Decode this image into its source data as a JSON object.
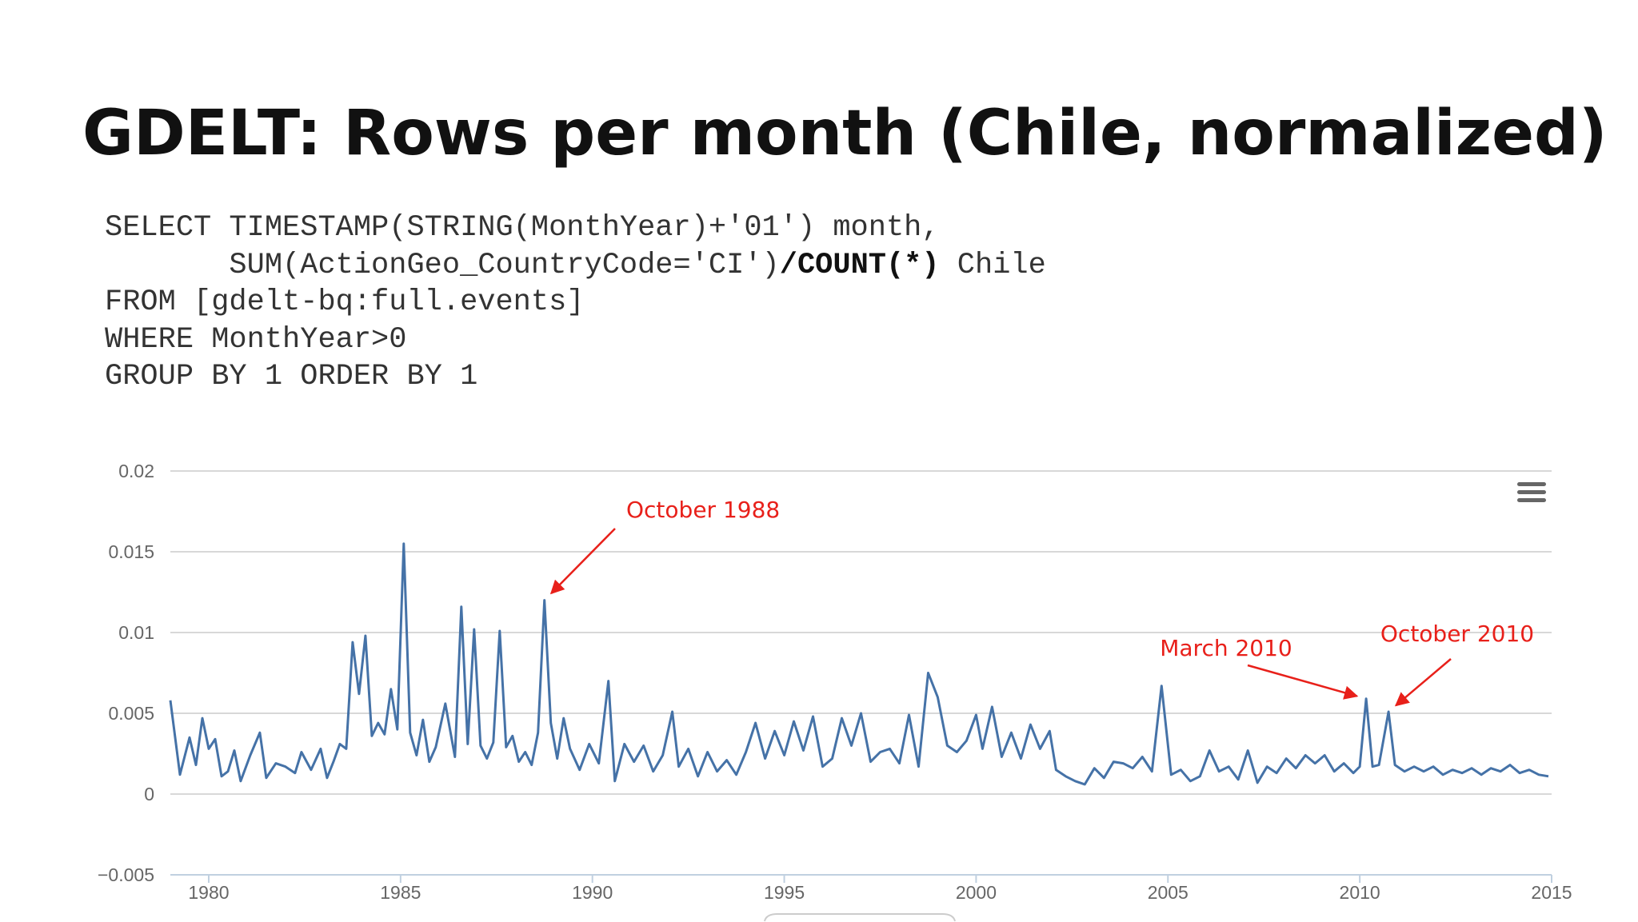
{
  "slide": {
    "title": "GDELT: Rows per month (Chile, normalized)",
    "code_lines": [
      [
        {
          "text": "SELECT TIMESTAMP(STRING(MonthYear)+'01') month,",
          "bold": false
        }
      ],
      [
        {
          "text": "       SUM(ActionGeo_CountryCode='CI')",
          "bold": false
        },
        {
          "text": "/COUNT(*)",
          "bold": true
        },
        {
          "text": " Chile",
          "bold": false
        }
      ],
      [
        {
          "text": "FROM [gdelt-bq:full.events]",
          "bold": false
        }
      ],
      [
        {
          "text": "WHERE MonthYear>0",
          "bold": false
        }
      ],
      [
        {
          "text": "GROUP BY 1 ORDER BY 1",
          "bold": false
        }
      ]
    ]
  },
  "chart_data": {
    "type": "line",
    "title": "",
    "xlabel": "",
    "ylabel": "",
    "xlim": [
      "1979-01",
      "2015-01"
    ],
    "ylim": [
      -0.005,
      0.02
    ],
    "yticks": [
      "0.02",
      "0.015",
      "0.01",
      "0.005",
      "0",
      "−0.005"
    ],
    "ytick_values": [
      0.02,
      0.015,
      0.01,
      0.005,
      0,
      -0.005
    ],
    "xticks": [
      "1980",
      "1985",
      "1990",
      "1995",
      "2000",
      "2005",
      "2010",
      "2015"
    ],
    "xtick_values": [
      "1980-01",
      "1985-01",
      "1990-01",
      "1995-01",
      "2000-01",
      "2005-01",
      "2010-01",
      "2015-01"
    ],
    "grid": true,
    "line_color": "#4572a7",
    "annotation_color": "#e8201a",
    "series": [
      {
        "values": [
          [
            "1979-01",
            0.0058
          ],
          [
            "1979-04",
            0.0012
          ],
          [
            "1979-07",
            0.0035
          ],
          [
            "1979-09",
            0.0018
          ],
          [
            "1979-11",
            0.0047
          ],
          [
            "1980-01",
            0.0028
          ],
          [
            "1980-03",
            0.0034
          ],
          [
            "1980-05",
            0.0011
          ],
          [
            "1980-07",
            0.0014
          ],
          [
            "1980-09",
            0.0027
          ],
          [
            "1980-11",
            0.0008
          ],
          [
            "1981-02",
            0.0024
          ],
          [
            "1981-05",
            0.0038
          ],
          [
            "1981-07",
            0.001
          ],
          [
            "1981-10",
            0.0019
          ],
          [
            "1982-01",
            0.0017
          ],
          [
            "1982-04",
            0.0013
          ],
          [
            "1982-06",
            0.0026
          ],
          [
            "1982-09",
            0.0015
          ],
          [
            "1982-12",
            0.0028
          ],
          [
            "1983-02",
            0.001
          ],
          [
            "1983-04",
            0.002
          ],
          [
            "1983-06",
            0.0031
          ],
          [
            "1983-08",
            0.0028
          ],
          [
            "1983-10",
            0.0094
          ],
          [
            "1983-12",
            0.0062
          ],
          [
            "1984-02",
            0.0098
          ],
          [
            "1984-04",
            0.0036
          ],
          [
            "1984-06",
            0.0044
          ],
          [
            "1984-08",
            0.0037
          ],
          [
            "1984-10",
            0.0065
          ],
          [
            "1984-12",
            0.004
          ],
          [
            "1985-02",
            0.0155
          ],
          [
            "1985-04",
            0.0038
          ],
          [
            "1985-06",
            0.0024
          ],
          [
            "1985-08",
            0.0046
          ],
          [
            "1985-10",
            0.002
          ],
          [
            "1985-12",
            0.0029
          ],
          [
            "1986-03",
            0.0056
          ],
          [
            "1986-06",
            0.0023
          ],
          [
            "1986-08",
            0.0116
          ],
          [
            "1986-10",
            0.0031
          ],
          [
            "1986-12",
            0.0102
          ],
          [
            "1987-02",
            0.003
          ],
          [
            "1987-04",
            0.0022
          ],
          [
            "1987-06",
            0.0032
          ],
          [
            "1987-08",
            0.0101
          ],
          [
            "1987-10",
            0.0029
          ],
          [
            "1987-12",
            0.0036
          ],
          [
            "1988-02",
            0.002
          ],
          [
            "1988-04",
            0.0026
          ],
          [
            "1988-06",
            0.0018
          ],
          [
            "1988-08",
            0.0038
          ],
          [
            "1988-10",
            0.012
          ],
          [
            "1988-12",
            0.0044
          ],
          [
            "1989-02",
            0.0022
          ],
          [
            "1989-04",
            0.0047
          ],
          [
            "1989-06",
            0.0028
          ],
          [
            "1989-09",
            0.0015
          ],
          [
            "1989-12",
            0.0031
          ],
          [
            "1990-03",
            0.0019
          ],
          [
            "1990-06",
            0.007
          ],
          [
            "1990-08",
            0.0008
          ],
          [
            "1990-11",
            0.0031
          ],
          [
            "1991-02",
            0.002
          ],
          [
            "1991-05",
            0.003
          ],
          [
            "1991-08",
            0.0014
          ],
          [
            "1991-11",
            0.0024
          ],
          [
            "1992-02",
            0.0051
          ],
          [
            "1992-04",
            0.0017
          ],
          [
            "1992-07",
            0.0028
          ],
          [
            "1992-10",
            0.0011
          ],
          [
            "1993-01",
            0.0026
          ],
          [
            "1993-04",
            0.0014
          ],
          [
            "1993-07",
            0.0021
          ],
          [
            "1993-10",
            0.0012
          ],
          [
            "1994-01",
            0.0026
          ],
          [
            "1994-04",
            0.0044
          ],
          [
            "1994-07",
            0.0022
          ],
          [
            "1994-10",
            0.0039
          ],
          [
            "1995-01",
            0.0024
          ],
          [
            "1995-04",
            0.0045
          ],
          [
            "1995-07",
            0.0027
          ],
          [
            "1995-10",
            0.0048
          ],
          [
            "1996-01",
            0.0017
          ],
          [
            "1996-04",
            0.0022
          ],
          [
            "1996-07",
            0.0047
          ],
          [
            "1996-10",
            0.003
          ],
          [
            "1997-01",
            0.005
          ],
          [
            "1997-04",
            0.002
          ],
          [
            "1997-07",
            0.0026
          ],
          [
            "1997-10",
            0.0028
          ],
          [
            "1998-01",
            0.0019
          ],
          [
            "1998-04",
            0.0049
          ],
          [
            "1998-07",
            0.0017
          ],
          [
            "1998-10",
            0.0075
          ],
          [
            "1999-01",
            0.006
          ],
          [
            "1999-04",
            0.003
          ],
          [
            "1999-07",
            0.0026
          ],
          [
            "1999-10",
            0.0033
          ],
          [
            "2000-01",
            0.0049
          ],
          [
            "2000-03",
            0.0028
          ],
          [
            "2000-06",
            0.0054
          ],
          [
            "2000-09",
            0.0023
          ],
          [
            "2000-12",
            0.0038
          ],
          [
            "2001-03",
            0.0022
          ],
          [
            "2001-06",
            0.0043
          ],
          [
            "2001-09",
            0.0028
          ],
          [
            "2001-12",
            0.0039
          ],
          [
            "2002-02",
            0.0015
          ],
          [
            "2002-05",
            0.0011
          ],
          [
            "2002-08",
            0.0008
          ],
          [
            "2002-11",
            0.0006
          ],
          [
            "2003-02",
            0.0016
          ],
          [
            "2003-05",
            0.001
          ],
          [
            "2003-08",
            0.002
          ],
          [
            "2003-11",
            0.0019
          ],
          [
            "2004-02",
            0.0016
          ],
          [
            "2004-05",
            0.0023
          ],
          [
            "2004-08",
            0.0014
          ],
          [
            "2004-11",
            0.0067
          ],
          [
            "2005-02",
            0.0012
          ],
          [
            "2005-05",
            0.0015
          ],
          [
            "2005-08",
            0.0008
          ],
          [
            "2005-11",
            0.0011
          ],
          [
            "2006-02",
            0.0027
          ],
          [
            "2006-05",
            0.0014
          ],
          [
            "2006-08",
            0.0017
          ],
          [
            "2006-11",
            0.0009
          ],
          [
            "2007-02",
            0.0027
          ],
          [
            "2007-05",
            0.0007
          ],
          [
            "2007-08",
            0.0017
          ],
          [
            "2007-11",
            0.0013
          ],
          [
            "2008-02",
            0.0022
          ],
          [
            "2008-05",
            0.0016
          ],
          [
            "2008-08",
            0.0024
          ],
          [
            "2008-11",
            0.0019
          ],
          [
            "2009-02",
            0.0024
          ],
          [
            "2009-05",
            0.0014
          ],
          [
            "2009-08",
            0.0019
          ],
          [
            "2009-11",
            0.0013
          ],
          [
            "2010-01",
            0.0017
          ],
          [
            "2010-03",
            0.0059
          ],
          [
            "2010-05",
            0.0017
          ],
          [
            "2010-07",
            0.0018
          ],
          [
            "2010-10",
            0.0051
          ],
          [
            "2010-12",
            0.0018
          ],
          [
            "2011-03",
            0.0014
          ],
          [
            "2011-06",
            0.0017
          ],
          [
            "2011-09",
            0.0014
          ],
          [
            "2011-12",
            0.0017
          ],
          [
            "2012-03",
            0.0012
          ],
          [
            "2012-06",
            0.0015
          ],
          [
            "2012-09",
            0.0013
          ],
          [
            "2012-12",
            0.0016
          ],
          [
            "2013-03",
            0.0012
          ],
          [
            "2013-06",
            0.0016
          ],
          [
            "2013-09",
            0.0014
          ],
          [
            "2013-12",
            0.0018
          ],
          [
            "2014-03",
            0.0013
          ],
          [
            "2014-06",
            0.0015
          ],
          [
            "2014-09",
            0.0012
          ],
          [
            "2014-12",
            0.0011
          ]
        ]
      }
    ],
    "annotations": [
      {
        "label": "October 1988",
        "target": [
          "1988-10",
          0.012
        ]
      },
      {
        "label": "March 2010",
        "target": [
          "2010-03",
          0.0059
        ]
      },
      {
        "label": "October 2010",
        "target": [
          "2010-10",
          0.0051
        ]
      }
    ]
  },
  "menu": {
    "icon": "hamburger-menu-icon"
  }
}
